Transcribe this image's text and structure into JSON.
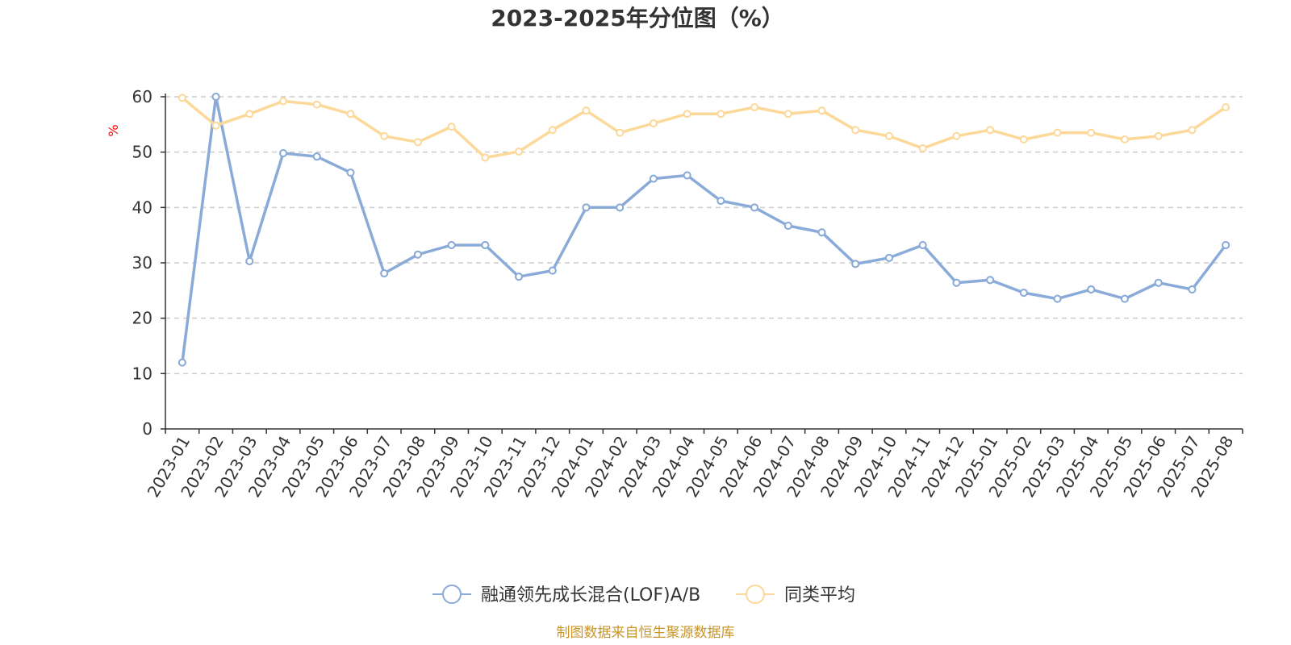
{
  "chart_data": {
    "type": "line",
    "title": "2023-2025年分位图（%）",
    "ylabel": "%",
    "xlabel": "",
    "ylim": [
      0,
      60
    ],
    "yticks": [
      0,
      10,
      20,
      30,
      40,
      50,
      60
    ],
    "grid": "horizontal dashed",
    "legend_position": "bottom-center",
    "categories": [
      "2023-01",
      "2023-02",
      "2023-03",
      "2023-04",
      "2023-05",
      "2023-06",
      "2023-07",
      "2023-08",
      "2023-09",
      "2023-10",
      "2023-11",
      "2023-12",
      "2024-01",
      "2024-02",
      "2024-03",
      "2024-04",
      "2024-05",
      "2024-06",
      "2024-07",
      "2024-08",
      "2024-09",
      "2024-10",
      "2024-11",
      "2024-12",
      "2025-01",
      "2025-02",
      "2025-03",
      "2025-04",
      "2025-05",
      "2025-06",
      "2025-07",
      "2025-08"
    ],
    "series": [
      {
        "name": "融通领先成长混合(LOF)A/B",
        "color": "#8aabd8",
        "values": [
          12,
          60,
          30.3,
          49.8,
          49.2,
          46.3,
          28.1,
          31.5,
          33.2,
          33.2,
          27.5,
          28.6,
          40,
          40,
          45.2,
          45.8,
          41.2,
          40,
          36.7,
          35.5,
          29.8,
          30.9,
          33.2,
          26.4,
          26.9,
          24.6,
          23.5,
          25.2,
          23.5,
          26.4,
          25.2,
          33.2
        ]
      },
      {
        "name": "同类平均",
        "color": "#fcd899",
        "values": [
          59.8,
          54.8,
          56.9,
          59.2,
          58.6,
          56.9,
          52.9,
          51.8,
          54.6,
          49,
          50.1,
          54,
          57.5,
          53.5,
          55.2,
          56.9,
          56.9,
          58.1,
          56.9,
          57.5,
          54,
          52.9,
          50.7,
          52.9,
          54,
          52.3,
          53.5,
          53.5,
          52.3,
          52.9,
          54,
          58.1
        ]
      }
    ]
  },
  "footer": {
    "source": "制图数据来自恒生聚源数据库"
  }
}
